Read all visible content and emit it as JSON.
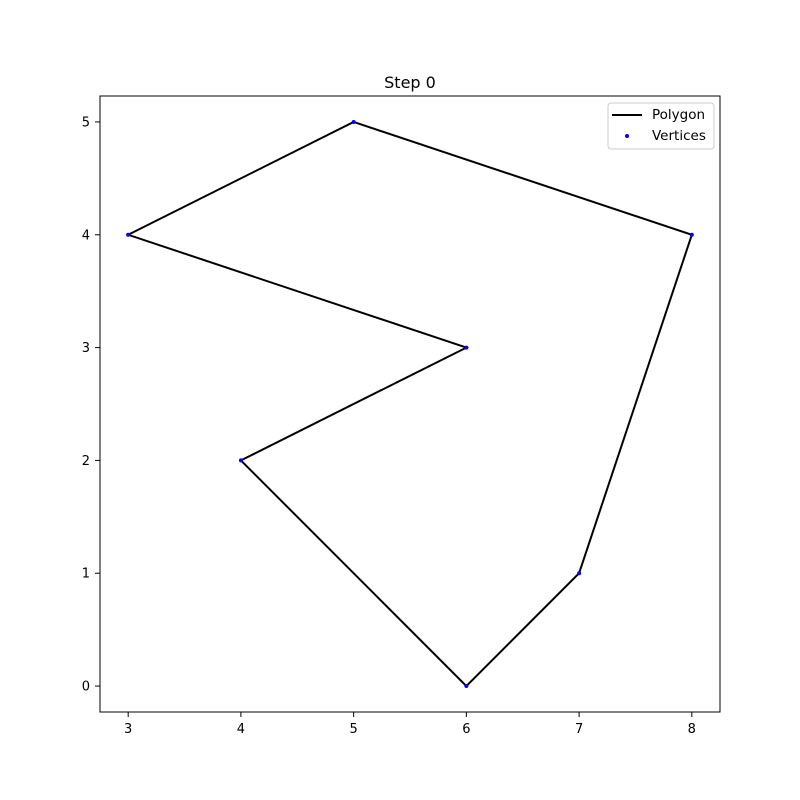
{
  "chart_data": {
    "type": "line",
    "title": "Step 0",
    "xlabel": "",
    "ylabel": "",
    "xlim": [
      2.75,
      8.25
    ],
    "ylim": [
      -0.23,
      5.23
    ],
    "xticks": [
      3,
      4,
      5,
      6,
      7,
      8
    ],
    "yticks": [
      0,
      1,
      2,
      3,
      4,
      5
    ],
    "grid": false,
    "legend_position": "top-right",
    "series": [
      {
        "name": "Polygon",
        "kind": "line",
        "closed": true,
        "color": "#000000",
        "points": [
          {
            "x": 6,
            "y": 0
          },
          {
            "x": 7,
            "y": 1
          },
          {
            "x": 8,
            "y": 4
          },
          {
            "x": 5,
            "y": 5
          },
          {
            "x": 3,
            "y": 4
          },
          {
            "x": 6,
            "y": 3
          },
          {
            "x": 4,
            "y": 2
          }
        ]
      },
      {
        "name": "Vertices",
        "kind": "scatter",
        "color": "#0000ff",
        "points": [
          {
            "x": 6,
            "y": 0
          },
          {
            "x": 7,
            "y": 1
          },
          {
            "x": 8,
            "y": 4
          },
          {
            "x": 5,
            "y": 5
          },
          {
            "x": 3,
            "y": 4
          },
          {
            "x": 6,
            "y": 3
          },
          {
            "x": 4,
            "y": 2
          }
        ]
      }
    ]
  }
}
